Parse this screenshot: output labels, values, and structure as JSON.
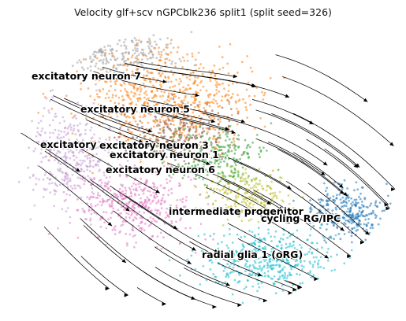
{
  "chart_data": {
    "type": "scatter",
    "title": "Velocity glf+scv nGPCblk236 split1 (split seed=326)",
    "xlabel": "",
    "ylabel": "",
    "grid": false,
    "legend": "none",
    "overlay": "velocity streamlines with arrowheads",
    "cluster_labels": [
      "excitatory neuron 7",
      "excitatory neuron 5",
      "excitatory neuron 4",
      "excitatory neuron 3",
      "excitatory neuron 1",
      "excitatory neuron 6",
      "intermediate progenitor",
      "cycling RG/IPC",
      "radial glia 1 (oRG)"
    ],
    "colors": {
      "excitatory neuron 7": "#9e9e9e",
      "excitatory neuron 5": "#ff7f0e",
      "excitatory neuron 4": "#c39bd3",
      "excitatory neuron 3": "#8c564b",
      "excitatory neuron 1": "#2ca02c",
      "excitatory neuron 6": "#e377c2",
      "intermediate progenitor": "#bcbd22",
      "cycling RG/IPC": "#1f77b4",
      "radial glia 1 (oRG)": "#17becf"
    }
  }
}
